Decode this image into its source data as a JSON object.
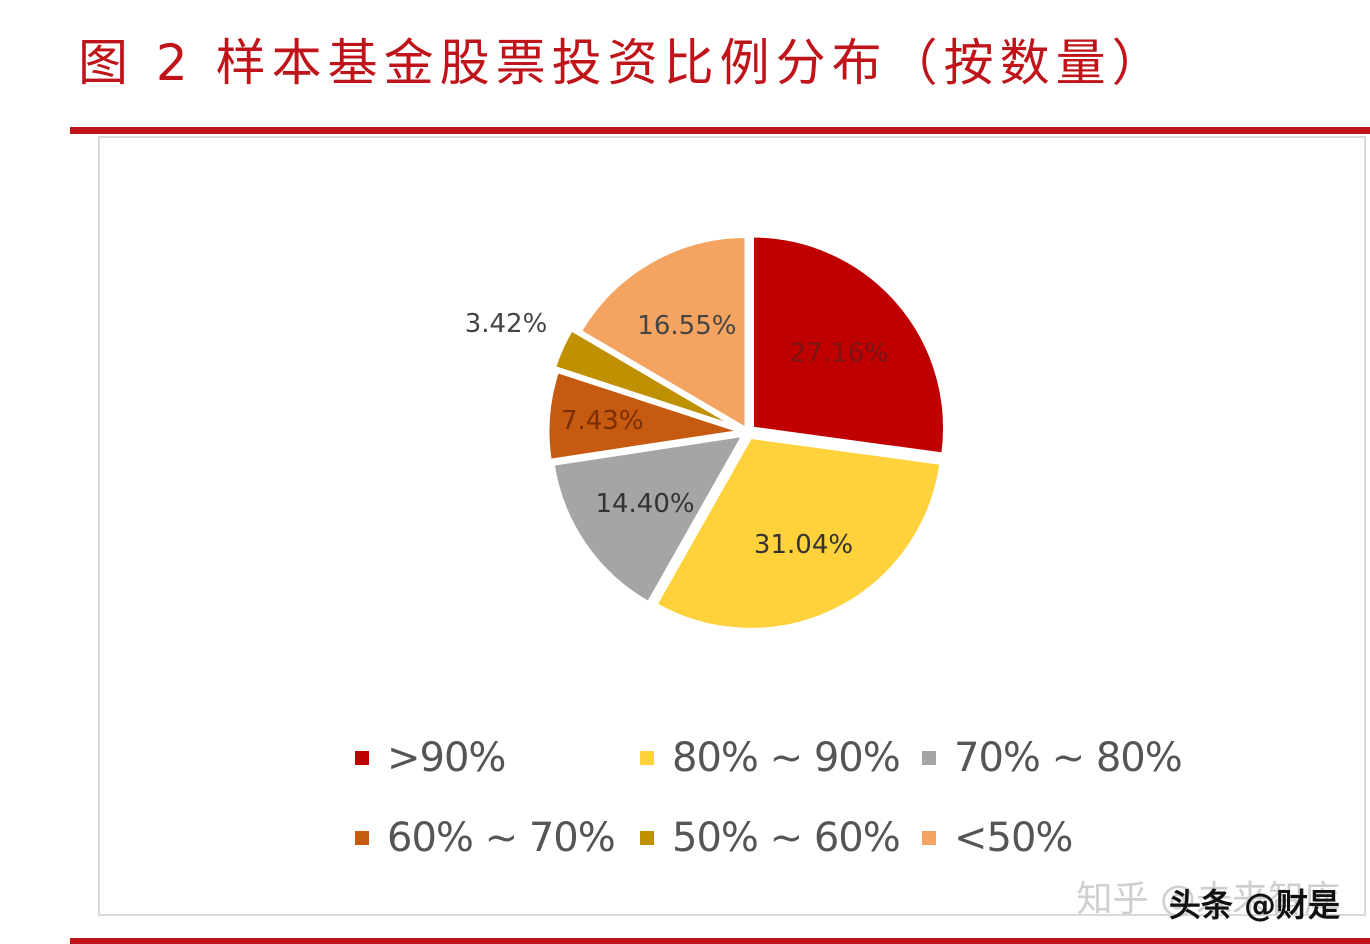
{
  "title": "图 2 样本基金股票投资比例分布（按数量）",
  "chart_data": {
    "type": "pie",
    "title": "",
    "categories": [
      ">90%",
      "80% ~ 90%",
      "70% ~ 80%",
      "60% ~ 70%",
      "50% ~ 60%",
      "<50%"
    ],
    "values": [
      27.16,
      31.04,
      14.4,
      7.43,
      3.42,
      16.55
    ],
    "data_labels": [
      "27.16%",
      "31.04%",
      "14.40%",
      "7.43%",
      "3.42%",
      "16.55%"
    ],
    "colors": [
      "#c00000",
      "#ffd13b",
      "#a5a5a5",
      "#c65a11",
      "#bf9000",
      "#f4a460"
    ],
    "legend_position": "bottom",
    "exploded": true
  },
  "watermark": {
    "zhihu": "知乎 @未来智库",
    "toutiao": "头条 @财是"
  }
}
